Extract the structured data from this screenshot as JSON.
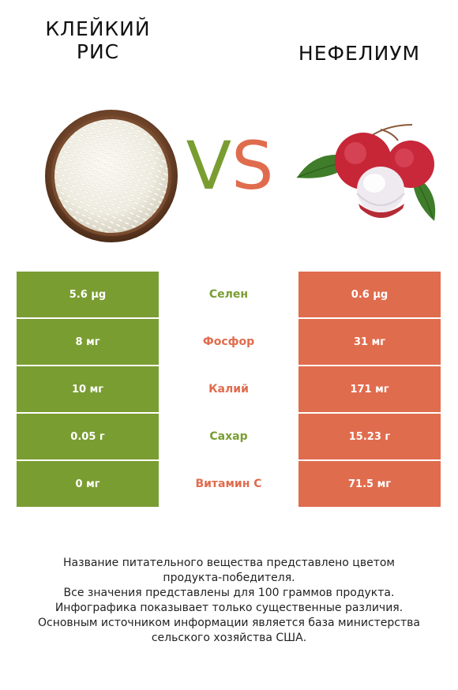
{
  "left_food": {
    "title_line1": "КЛЕЙКИЙ",
    "title_line2": "РИС"
  },
  "right_food": {
    "title": "НЕФЕЛИУМ"
  },
  "vs": {
    "v": "V",
    "s": "S"
  },
  "colors": {
    "left": "#7a9d32",
    "right": "#e06c4e"
  },
  "rows": [
    {
      "left": "5.6 µg",
      "nutrient": "Селен",
      "right": "0.6 µg",
      "winner": "left"
    },
    {
      "left": "8 мг",
      "nutrient": "Фосфор",
      "right": "31 мг",
      "winner": "right"
    },
    {
      "left": "10 мг",
      "nutrient": "Калий",
      "right": "171 мг",
      "winner": "right"
    },
    {
      "left": "0.05 г",
      "nutrient": "Сахар",
      "right": "15.23 г",
      "winner": "left"
    },
    {
      "left": "0 мг",
      "nutrient": "Витамин C",
      "right": "71.5 мг",
      "winner": "right"
    }
  ],
  "footnote": {
    "line1": "Название питательного вещества представлено цветом",
    "line2": "продукта-победителя.",
    "line3": "Все значения представлены для 100 граммов продукта.",
    "line4": "Инфографика показывает только существенные различия.",
    "line5": "Основным источником информации является база министерства",
    "line6": "сельского хозяйства США."
  }
}
